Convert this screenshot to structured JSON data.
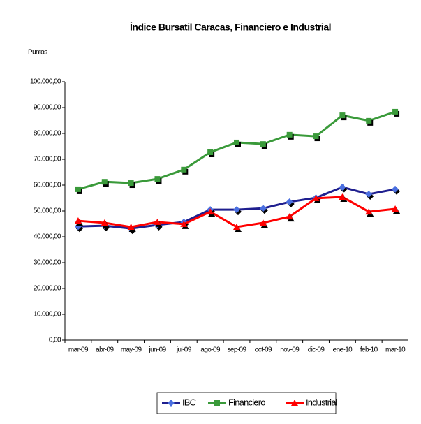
{
  "chart_data": {
    "type": "line",
    "title": "Índice Bursatil Caracas, Financiero e Industrial",
    "y_label": "Puntos",
    "categories": [
      "mar-09",
      "abr-09",
      "may-09",
      "jun-09",
      "jul-09",
      "ago-09",
      "sep-09",
      "oct-09",
      "nov-09",
      "dic-09",
      "ene-10",
      "feb-10",
      "mar-10"
    ],
    "series": [
      {
        "name": "IBC",
        "color": "#1f1f8f",
        "marker_color": "#4a6fe0",
        "marker": "diamond",
        "values": [
          44000,
          44300,
          43200,
          44600,
          45700,
          50500,
          50500,
          51000,
          53500,
          55100,
          59200,
          56500,
          58400
        ]
      },
      {
        "name": "Financiero",
        "color": "#3a9a3a",
        "marker_color": "#3a9a3a",
        "marker": "square",
        "values": [
          58400,
          61300,
          60800,
          62400,
          66000,
          72700,
          76500,
          75900,
          79500,
          78900,
          87000,
          84900,
          88400
        ]
      },
      {
        "name": "Industrial",
        "color": "#ff0000",
        "marker_color": "#ff0000",
        "marker": "triangle",
        "values": [
          46200,
          45400,
          43800,
          45700,
          44900,
          49700,
          43800,
          45400,
          47800,
          54900,
          55400,
          49700,
          50800
        ]
      }
    ],
    "ylim": [
      0,
      100000
    ],
    "yticks": [
      {
        "value": 0,
        "label": "0,00"
      },
      {
        "value": 10000,
        "label": "10.000,00"
      },
      {
        "value": 20000,
        "label": "20.000,00"
      },
      {
        "value": 30000,
        "label": "30.000,00"
      },
      {
        "value": 40000,
        "label": "40.000,00"
      },
      {
        "value": 50000,
        "label": "50.000,00"
      },
      {
        "value": 60000,
        "label": "60.000,00"
      },
      {
        "value": 70000,
        "label": "70.000,00"
      },
      {
        "value": 80000,
        "label": "80.000,00"
      },
      {
        "value": 90000,
        "label": "90.000,00"
      },
      {
        "value": 100000,
        "label": "100.000,00"
      }
    ],
    "legend": "bottom"
  }
}
